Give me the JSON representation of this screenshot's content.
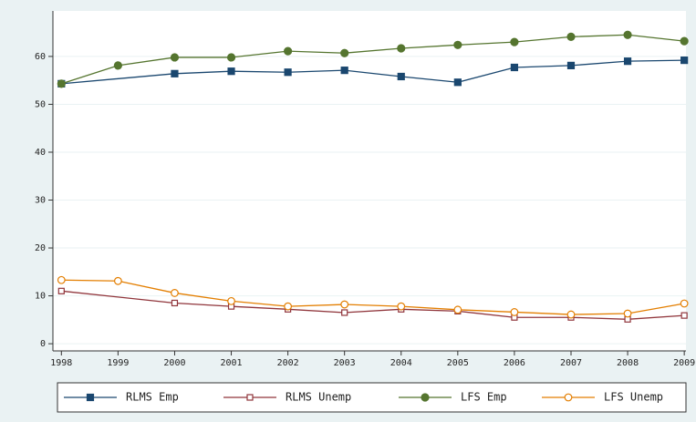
{
  "chart_data": {
    "type": "line",
    "series": [
      {
        "name": "RLMS Emp",
        "color": "#1a476f",
        "marker": "square",
        "x": [
          1998,
          2000,
          2001,
          2002,
          2003,
          2004,
          2005,
          2006,
          2007,
          2008,
          2009
        ],
        "values": [
          54.3,
          56.4,
          56.9,
          56.7,
          57.1,
          55.8,
          54.6,
          57.7,
          58.1,
          59.0,
          59.2
        ]
      },
      {
        "name": "RLMS Unemp",
        "color": "#90353b",
        "marker": "square-hollow",
        "x": [
          1998,
          2000,
          2001,
          2002,
          2003,
          2004,
          2005,
          2006,
          2007,
          2008,
          2009
        ],
        "values": [
          11.0,
          8.5,
          7.8,
          7.2,
          6.5,
          7.2,
          6.8,
          5.5,
          5.5,
          5.1,
          5.9
        ]
      },
      {
        "name": "LFS Emp",
        "color": "#55752f",
        "marker": "circle",
        "x": [
          1998,
          1999,
          2000,
          2001,
          2002,
          2003,
          2004,
          2005,
          2006,
          2007,
          2008,
          2009
        ],
        "values": [
          54.3,
          58.1,
          59.8,
          59.8,
          61.1,
          60.7,
          61.7,
          62.4,
          63.0,
          64.1,
          64.5,
          63.2
        ]
      },
      {
        "name": "LFS Unemp",
        "color": "#e37e00",
        "marker": "circle-hollow",
        "x": [
          1998,
          1999,
          2000,
          2001,
          2002,
          2003,
          2004,
          2005,
          2006,
          2007,
          2008,
          2009
        ],
        "values": [
          13.3,
          13.1,
          10.6,
          8.9,
          7.8,
          8.2,
          7.8,
          7.1,
          6.6,
          6.1,
          6.3,
          8.4
        ]
      }
    ],
    "xlim": [
      1997.85,
      2009.03
    ],
    "xticks": [
      1998,
      1999,
      2000,
      2001,
      2002,
      2003,
      2004,
      2005,
      2006,
      2007,
      2008,
      2009
    ],
    "ylim": [
      -1.5,
      69.5
    ],
    "yticks": [
      0,
      10,
      20,
      30,
      40,
      50,
      60
    ],
    "grid": true,
    "legend": "bottom"
  }
}
